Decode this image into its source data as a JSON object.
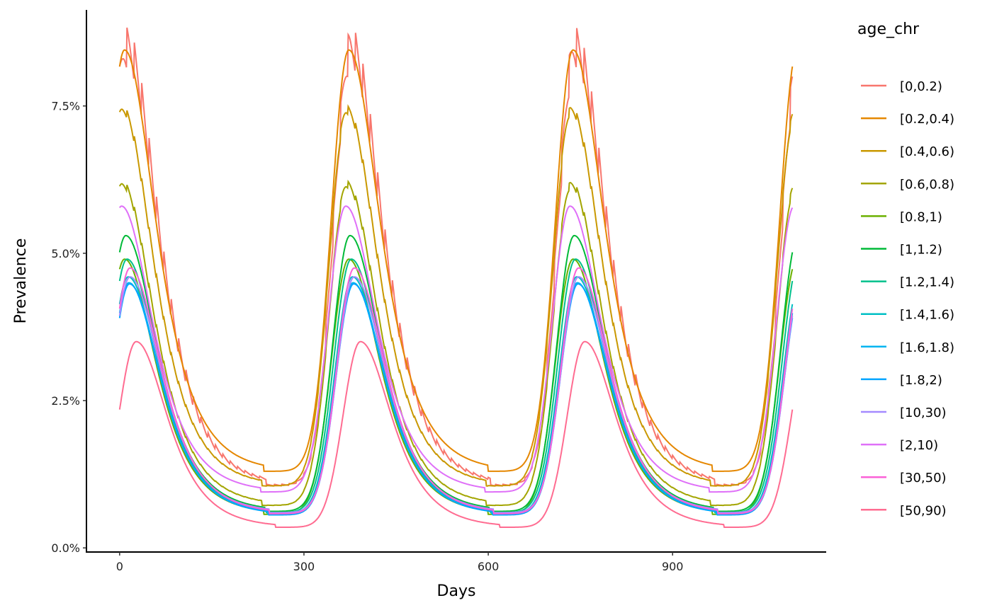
{
  "chart_data": {
    "type": "line",
    "title": "",
    "xlabel": "Days",
    "ylabel": "Prevalence",
    "xlim": [
      -54,
      1150
    ],
    "ylim": [
      -0.07,
      9.13
    ],
    "x_range_data": [
      0,
      1095
    ],
    "period_days": 365,
    "xticks": [
      0,
      300,
      600,
      900
    ],
    "xtick_labels": [
      "0",
      "300",
      "600",
      "900"
    ],
    "yticks": [
      0,
      2.5,
      5,
      7.5
    ],
    "ytick_labels": [
      "0.0%",
      "2.5%",
      "5.0%",
      "7.5%"
    ],
    "grid": false,
    "legend": {
      "title": "age_chr",
      "position": "right"
    },
    "series": [
      {
        "name": "[0,0.2)",
        "color": "#F8766D",
        "peak": 8.1,
        "peak_day": 12,
        "trough": 1.05,
        "sawtooth": 0.09
      },
      {
        "name": "[0.2,0.4)",
        "color": "#E58700",
        "peak": 8.45,
        "peak_day": 8,
        "trough": 1.3,
        "sawtooth": 0.0
      },
      {
        "name": "[0.4,0.6)",
        "color": "#C99800",
        "peak": 7.35,
        "peak_day": 5,
        "trough": 1.05,
        "sawtooth": 0.02
      },
      {
        "name": "[0.6,0.8)",
        "color": "#A3A500",
        "peak": 6.1,
        "peak_day": 5,
        "trough": 0.72,
        "sawtooth": 0.02
      },
      {
        "name": "[0.8,1)",
        "color": "#6BB100",
        "peak": 4.9,
        "peak_day": 8,
        "trough": 0.57,
        "sawtooth": 0.0
      },
      {
        "name": "[1,1.2)",
        "color": "#00BA38",
        "peak": 5.3,
        "peak_day": 10,
        "trough": 0.62,
        "sawtooth": 0.0
      },
      {
        "name": "[1.2,1.4)",
        "color": "#00C08B",
        "peak": 4.9,
        "peak_day": 12,
        "trough": 0.6,
        "sawtooth": 0.0
      },
      {
        "name": "[1.4,1.6)",
        "color": "#00BFC4",
        "peak": 4.6,
        "peak_day": 14,
        "trough": 0.58,
        "sawtooth": 0.0
      },
      {
        "name": "[1.6,1.8)",
        "color": "#00B4F0",
        "peak": 4.5,
        "peak_day": 15,
        "trough": 0.57,
        "sawtooth": 0.0
      },
      {
        "name": "[1.8,2)",
        "color": "#00A5FF",
        "peak": 4.48,
        "peak_day": 16,
        "trough": 0.56,
        "sawtooth": 0.0
      },
      {
        "name": "[10,30)",
        "color": "#A58AFF",
        "peak": 4.6,
        "peak_day": 17,
        "trough": 0.6,
        "sawtooth": 0.0
      },
      {
        "name": "[2,10)",
        "color": "#DF70F8",
        "peak": 5.8,
        "peak_day": 3,
        "trough": 0.95,
        "sawtooth": 0.0
      },
      {
        "name": "[30,50)",
        "color": "#FB61D7",
        "peak": 4.75,
        "peak_day": 17,
        "trough": 0.58,
        "sawtooth": 0.0
      },
      {
        "name": "[50,90)",
        "color": "#FF6C91",
        "peak": 3.5,
        "peak_day": 27,
        "trough": 0.35,
        "sawtooth": 0.0
      }
    ]
  }
}
